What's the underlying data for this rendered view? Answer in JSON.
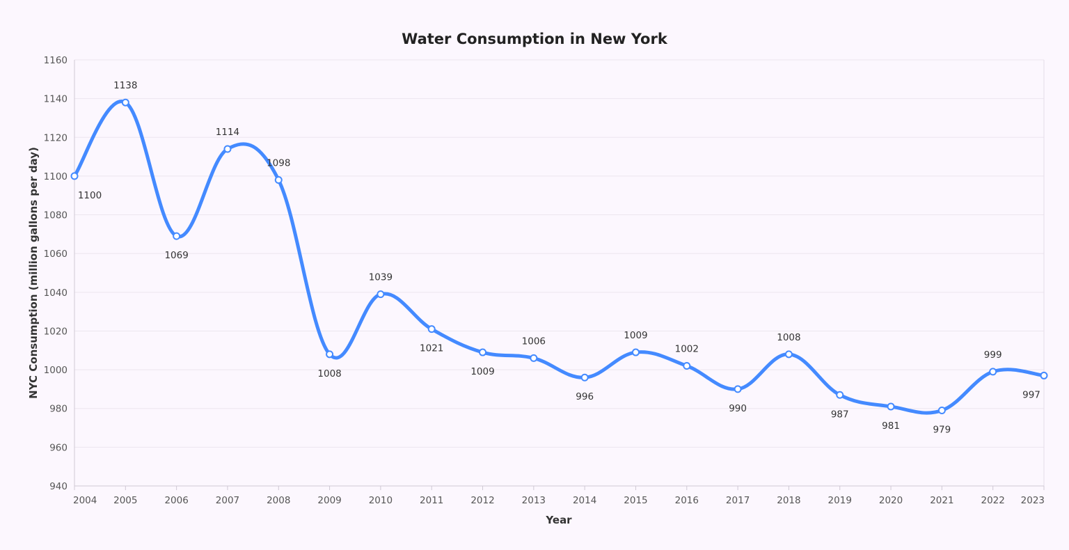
{
  "chart_data": {
    "type": "line",
    "title": "Water Consumption in New York",
    "xlabel": "Year",
    "ylabel": "NYC Consumption (million gallons per day)",
    "x": [
      "2004",
      "2005",
      "2006",
      "2007",
      "2008",
      "2009",
      "2010",
      "2011",
      "2012",
      "2013",
      "2014",
      "2015",
      "2016",
      "2017",
      "2018",
      "2019",
      "2020",
      "2021",
      "2022",
      "2023"
    ],
    "series": [
      {
        "values": [
          1100,
          1138,
          1069,
          1114,
          1098,
          1008,
          1039,
          1021,
          1009,
          1006,
          996,
          1009,
          1002,
          990,
          1008,
          987,
          981,
          979,
          999,
          997
        ]
      }
    ],
    "ylim": [
      940,
      1160
    ],
    "yticks": [
      940,
      960,
      980,
      1000,
      1020,
      1040,
      1060,
      1080,
      1100,
      1120,
      1140,
      1160
    ],
    "grid": true,
    "smooth": true,
    "markers": true,
    "data_labels": true,
    "legend": "none",
    "colors": {
      "line": "#448aff",
      "background": "#fcf7fe",
      "grid": "#ece6ef"
    }
  }
}
